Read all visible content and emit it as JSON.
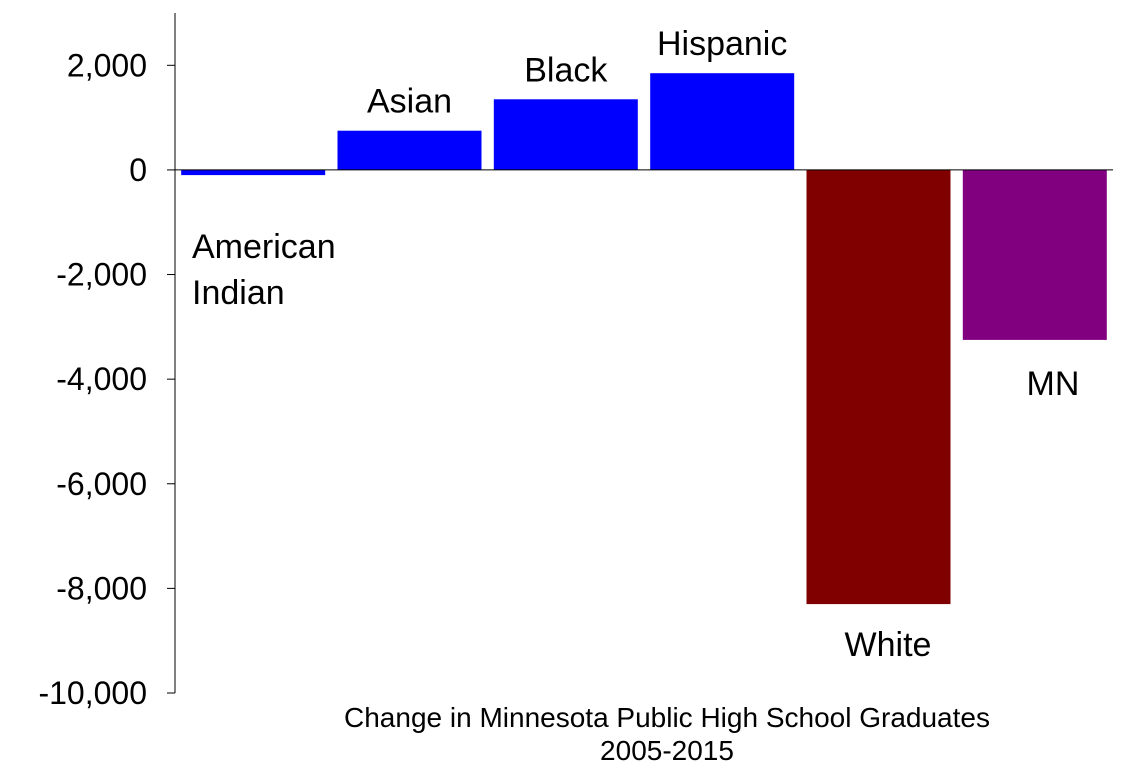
{
  "chart_data": {
    "type": "bar",
    "title": "Change in Minnesota Public High School Graduates",
    "subtitle": "2005-2015",
    "xlabel": "",
    "ylabel": "",
    "ylim": [
      -10000,
      3000
    ],
    "yticks": [
      2000,
      0,
      -2000,
      -4000,
      -6000,
      -8000,
      -10000
    ],
    "ytick_labels": [
      "2,000",
      "0",
      "-2,000",
      "-4,000",
      "-6,000",
      "-8,000",
      "-10,000"
    ],
    "grid": false,
    "categories": [
      "American Indian",
      "Asian",
      "Black",
      "Hispanic",
      "White",
      "MN"
    ],
    "category_label_lines": [
      [
        "American",
        "Indian"
      ],
      [
        "Asian"
      ],
      [
        "Black"
      ],
      [
        "Hispanic"
      ],
      [
        "White"
      ],
      [
        "MN"
      ]
    ],
    "values": [
      -100,
      750,
      1350,
      1850,
      -8300,
      -3250
    ],
    "colors": [
      "#0000ff",
      "#0000ff",
      "#0000ff",
      "#0000ff",
      "#800000",
      "#800080"
    ]
  }
}
